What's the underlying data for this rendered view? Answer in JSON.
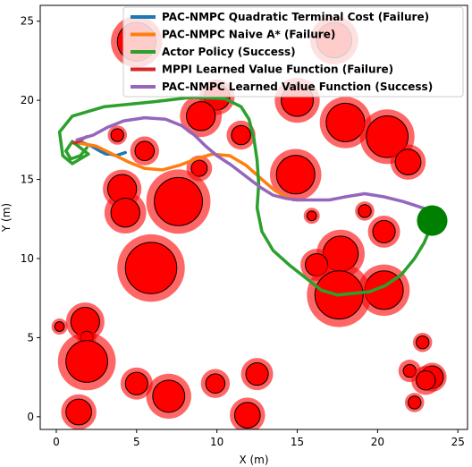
{
  "chart_data": {
    "type": "scatter",
    "xlabel": "X (m)",
    "ylabel": "Y (m)",
    "xlim": [
      -1.0,
      25.6
    ],
    "ylim": [
      -0.8,
      26.0
    ],
    "xticks": [
      0,
      5,
      10,
      15,
      20,
      25
    ],
    "yticks": [
      0,
      5,
      10,
      15,
      20,
      25
    ],
    "grid": false,
    "legend_position": "top-right",
    "goal": {
      "x": 23.4,
      "y": 12.4,
      "color": "#008000"
    },
    "obstacles": [
      {
        "x": 5.0,
        "y": 23.7,
        "r": 1.2,
        "margin": 1.6
      },
      {
        "x": 17.3,
        "y": 23.8,
        "r": 1.1,
        "margin": 1.5
      },
      {
        "x": 15.0,
        "y": 20.0,
        "r": 1.0,
        "margin": 1.4
      },
      {
        "x": 10.0,
        "y": 20.2,
        "r": 0.8,
        "margin": 1.1
      },
      {
        "x": 9.0,
        "y": 19.0,
        "r": 0.9,
        "margin": 1.3
      },
      {
        "x": 18.0,
        "y": 18.6,
        "r": 1.2,
        "margin": 1.6
      },
      {
        "x": 20.6,
        "y": 17.7,
        "r": 1.3,
        "margin": 1.7
      },
      {
        "x": 11.5,
        "y": 17.8,
        "r": 0.6,
        "margin": 0.9
      },
      {
        "x": 3.8,
        "y": 17.8,
        "r": 0.4,
        "margin": 0.6
      },
      {
        "x": 5.5,
        "y": 16.8,
        "r": 0.6,
        "margin": 0.9
      },
      {
        "x": 8.9,
        "y": 15.7,
        "r": 0.5,
        "margin": 0.8
      },
      {
        "x": 21.9,
        "y": 16.1,
        "r": 0.8,
        "margin": 1.1
      },
      {
        "x": 14.9,
        "y": 15.3,
        "r": 1.2,
        "margin": 1.6
      },
      {
        "x": 4.1,
        "y": 14.4,
        "r": 0.9,
        "margin": 1.2
      },
      {
        "x": 7.6,
        "y": 13.6,
        "r": 1.5,
        "margin": 2.0
      },
      {
        "x": 4.3,
        "y": 12.9,
        "r": 0.9,
        "margin": 1.3
      },
      {
        "x": 15.9,
        "y": 12.7,
        "r": 0.3,
        "margin": 0.5
      },
      {
        "x": 19.2,
        "y": 13.0,
        "r": 0.4,
        "margin": 0.6
      },
      {
        "x": 20.4,
        "y": 11.7,
        "r": 0.7,
        "margin": 1.0
      },
      {
        "x": 17.7,
        "y": 10.3,
        "r": 1.1,
        "margin": 1.5
      },
      {
        "x": 16.2,
        "y": 9.6,
        "r": 0.7,
        "margin": 1.0
      },
      {
        "x": 5.9,
        "y": 9.4,
        "r": 1.6,
        "margin": 2.1
      },
      {
        "x": 20.4,
        "y": 8.0,
        "r": 1.2,
        "margin": 1.6
      },
      {
        "x": 17.6,
        "y": 7.7,
        "r": 1.5,
        "margin": 2.0
      },
      {
        "x": 0.2,
        "y": 5.7,
        "r": 0.3,
        "margin": 0.5
      },
      {
        "x": 1.8,
        "y": 6.0,
        "r": 0.9,
        "margin": 1.2
      },
      {
        "x": 1.9,
        "y": 5.0,
        "r": 0.4,
        "margin": 0.6
      },
      {
        "x": 22.8,
        "y": 4.7,
        "r": 0.4,
        "margin": 0.6
      },
      {
        "x": 1.9,
        "y": 3.5,
        "r": 1.3,
        "margin": 1.8
      },
      {
        "x": 12.5,
        "y": 2.7,
        "r": 0.7,
        "margin": 1.0
      },
      {
        "x": 22.0,
        "y": 2.9,
        "r": 0.4,
        "margin": 0.7
      },
      {
        "x": 23.4,
        "y": 2.5,
        "r": 0.7,
        "margin": 0.9
      },
      {
        "x": 23.0,
        "y": 2.3,
        "r": 0.6,
        "margin": 0.9
      },
      {
        "x": 5.0,
        "y": 2.1,
        "r": 0.7,
        "margin": 1.0
      },
      {
        "x": 9.9,
        "y": 2.1,
        "r": 0.6,
        "margin": 0.9
      },
      {
        "x": 7.0,
        "y": 1.3,
        "r": 1.0,
        "margin": 1.4
      },
      {
        "x": 22.3,
        "y": 0.9,
        "r": 0.4,
        "margin": 0.6
      },
      {
        "x": 1.4,
        "y": 0.3,
        "r": 0.8,
        "margin": 1.1
      },
      {
        "x": 11.9,
        "y": 0.1,
        "r": 0.8,
        "margin": 1.1
      }
    ],
    "series": [
      {
        "name": "PAC-NMPC Quadratic Terminal Cost (Failure)",
        "color": "#1f77b4",
        "x": [
          1.3,
          1.7,
          2.2,
          2.7,
          3.1,
          3.4,
          3.7,
          4.0,
          4.3
        ],
        "y": [
          17.4,
          17.3,
          17.1,
          16.8,
          16.6,
          16.6,
          16.5,
          16.6,
          16.7
        ]
      },
      {
        "name": "PAC-NMPC Naive A* (Failure)",
        "color": "#ff7f0e",
        "x": [
          1.4,
          2.5,
          3.5,
          4.5,
          5.5,
          6.6,
          7.7,
          8.7,
          9.7,
          10.8,
          11.8,
          12.8,
          13.6,
          14.3,
          14.8
        ],
        "y": [
          17.3,
          17.1,
          16.6,
          16.1,
          15.7,
          15.6,
          15.9,
          16.3,
          16.6,
          16.5,
          15.9,
          15.0,
          14.3,
          13.9,
          13.7
        ]
      },
      {
        "name": "Actor Policy (Success)",
        "color": "#2ca02c",
        "x": [
          1.9,
          1.5,
          0.9,
          0.6,
          1.0,
          2.0,
          1.0,
          0.4,
          0.2,
          1.0,
          3.0,
          6.0,
          8.5,
          10.5,
          11.5,
          12.0,
          12.3,
          12.5,
          12.6,
          12.5,
          12.8,
          13.5,
          14.5,
          15.5,
          16.5,
          17.5,
          18.5,
          19.5,
          20.5,
          21.5,
          22.3,
          22.9,
          23.4
        ],
        "y": [
          17.0,
          16.5,
          16.3,
          16.8,
          17.4,
          16.6,
          16.0,
          16.5,
          18.0,
          19.0,
          19.6,
          19.9,
          20.2,
          20.1,
          19.6,
          18.8,
          17.6,
          16.2,
          14.7,
          13.2,
          11.7,
          10.5,
          9.6,
          8.8,
          8.0,
          7.7,
          7.8,
          7.9,
          8.3,
          9.0,
          10.0,
          11.0,
          12.2
        ]
      },
      {
        "name": "MPPI Learned Value Function (Failure)",
        "color": "#d62728",
        "x": [
          1.1,
          1.4,
          1.7,
          1.9
        ],
        "y": [
          17.3,
          17.4,
          17.6,
          17.7
        ]
      },
      {
        "name": "PAC-NMPC Learned Value Function (Success)",
        "color": "#9467bd",
        "x": [
          1.3,
          2.3,
          3.2,
          4.2,
          5.5,
          6.8,
          7.8,
          8.6,
          9.3,
          10.0,
          10.9,
          11.8,
          12.7,
          13.5,
          14.3,
          15.0,
          16.0,
          17.0,
          18.0,
          19.2,
          20.4,
          21.6,
          22.5,
          23.1
        ],
        "y": [
          17.5,
          17.8,
          18.3,
          18.7,
          18.9,
          18.8,
          18.4,
          17.8,
          17.1,
          16.5,
          15.9,
          15.2,
          14.5,
          14.0,
          13.8,
          13.7,
          13.7,
          13.7,
          13.9,
          14.1,
          13.9,
          13.6,
          13.3,
          13.1
        ]
      }
    ]
  }
}
